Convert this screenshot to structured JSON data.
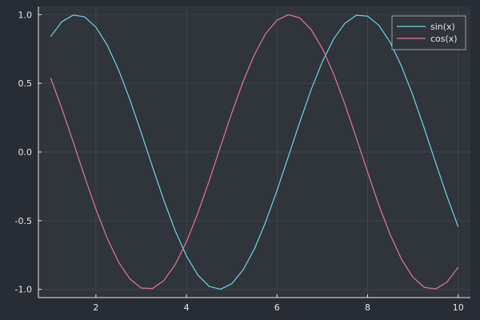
{
  "chart_data": {
    "type": "line",
    "title": "",
    "xlabel": "",
    "ylabel": "",
    "xlim": [
      0.73,
      10.27
    ],
    "ylim": [
      -1.06,
      1.06
    ],
    "x_ticks": [
      2,
      4,
      6,
      8,
      10
    ],
    "x_tick_labels": [
      "2",
      "4",
      "6",
      "8",
      "10"
    ],
    "y_ticks": [
      -1.0,
      -0.5,
      0.0,
      0.5,
      1.0
    ],
    "y_tick_labels": [
      "-1.0",
      "-0.5",
      "0.0",
      "0.5",
      "1.0"
    ],
    "grid": true,
    "legend_position": "top-right",
    "x": [
      1.0,
      1.25,
      1.5,
      1.75,
      2.0,
      2.25,
      2.5,
      2.75,
      3.0,
      3.25,
      3.5,
      3.75,
      4.0,
      4.25,
      4.5,
      4.75,
      5.0,
      5.25,
      5.5,
      5.75,
      6.0,
      6.25,
      6.5,
      6.75,
      7.0,
      7.25,
      7.5,
      7.75,
      8.0,
      8.25,
      8.5,
      8.75,
      9.0,
      9.25,
      9.5,
      9.75,
      10.0
    ],
    "series": [
      {
        "name": "sin(x)",
        "color": "#6fd6e8",
        "values": [
          0.841,
          0.949,
          0.997,
          0.984,
          0.909,
          0.778,
          0.598,
          0.382,
          0.141,
          -0.108,
          -0.351,
          -0.572,
          -0.757,
          -0.895,
          -0.978,
          -0.999,
          -0.959,
          -0.859,
          -0.706,
          -0.508,
          -0.279,
          -0.033,
          0.215,
          0.451,
          0.657,
          0.823,
          0.938,
          0.995,
          0.989,
          0.922,
          0.798,
          0.624,
          0.412,
          0.174,
          -0.075,
          -0.319,
          -0.544
        ]
      },
      {
        "name": "cos(x)",
        "color": "#e3779e",
        "values": [
          0.54,
          0.315,
          0.071,
          -0.178,
          -0.416,
          -0.628,
          -0.801,
          -0.924,
          -0.99,
          -0.994,
          -0.936,
          -0.821,
          -0.654,
          -0.446,
          -0.211,
          0.038,
          0.284,
          0.512,
          0.709,
          0.862,
          0.96,
          0.999,
          0.977,
          0.893,
          0.754,
          0.568,
          0.347,
          0.104,
          -0.146,
          -0.388,
          -0.602,
          -0.781,
          -0.911,
          -0.985,
          -0.997,
          -0.948,
          -0.839
        ]
      }
    ]
  },
  "colors": {
    "background": "#282c34",
    "plot_background": "#30343b",
    "axis": "#e8e8e8",
    "grid": "#3f444c",
    "legend_bg": "#30343b",
    "legend_border": "#e8e8e8",
    "text": "#e8e8e8"
  }
}
